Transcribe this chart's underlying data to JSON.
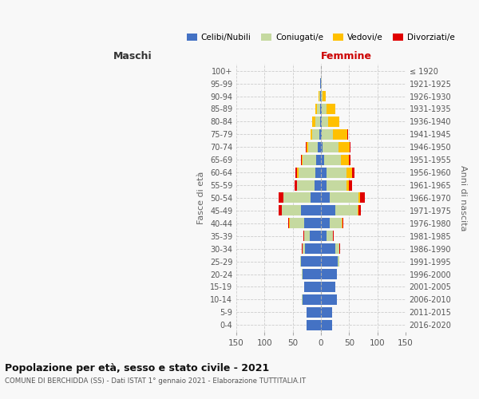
{
  "age_groups": [
    "0-4",
    "5-9",
    "10-14",
    "15-19",
    "20-24",
    "25-29",
    "30-34",
    "35-39",
    "40-44",
    "45-49",
    "50-54",
    "55-59",
    "60-64",
    "65-69",
    "70-74",
    "75-79",
    "80-84",
    "85-89",
    "90-94",
    "95-99",
    "100+"
  ],
  "birth_years": [
    "2016-2020",
    "2011-2015",
    "2006-2010",
    "2001-2005",
    "1996-2000",
    "1991-1995",
    "1986-1990",
    "1981-1985",
    "1976-1980",
    "1971-1975",
    "1966-1970",
    "1961-1965",
    "1956-1960",
    "1951-1955",
    "1946-1950",
    "1941-1945",
    "1936-1940",
    "1931-1935",
    "1926-1930",
    "1921-1925",
    "≤ 1920"
  ],
  "maschi": {
    "celibi": [
      25,
      25,
      33,
      30,
      33,
      35,
      28,
      20,
      30,
      35,
      18,
      12,
      10,
      8,
      5,
      3,
      2,
      2,
      1,
      1,
      0
    ],
    "coniugati": [
      0,
      0,
      1,
      0,
      1,
      2,
      5,
      10,
      25,
      35,
      48,
      30,
      30,
      25,
      18,
      12,
      8,
      5,
      2,
      1,
      0
    ],
    "vedovi": [
      0,
      0,
      0,
      0,
      0,
      0,
      0,
      0,
      1,
      0,
      1,
      1,
      2,
      1,
      2,
      3,
      5,
      3,
      1,
      0,
      0
    ],
    "divorziati": [
      0,
      0,
      0,
      0,
      0,
      0,
      1,
      1,
      2,
      5,
      8,
      4,
      3,
      1,
      2,
      1,
      0,
      0,
      0,
      0,
      0
    ]
  },
  "femmine": {
    "nubili": [
      20,
      20,
      28,
      25,
      28,
      30,
      25,
      10,
      15,
      25,
      15,
      10,
      10,
      5,
      3,
      2,
      1,
      2,
      0,
      0,
      0
    ],
    "coniugate": [
      0,
      0,
      1,
      0,
      1,
      3,
      8,
      12,
      22,
      40,
      52,
      35,
      35,
      30,
      28,
      20,
      12,
      8,
      3,
      1,
      0
    ],
    "vedove": [
      0,
      0,
      0,
      0,
      0,
      0,
      0,
      0,
      1,
      2,
      3,
      5,
      10,
      15,
      20,
      25,
      20,
      15,
      5,
      1,
      0
    ],
    "divorziate": [
      0,
      0,
      0,
      0,
      0,
      0,
      1,
      1,
      2,
      4,
      8,
      5,
      5,
      2,
      2,
      1,
      0,
      0,
      0,
      0,
      0
    ]
  },
  "colors": {
    "celibi": "#4472c4",
    "coniugati": "#c5d9a0",
    "vedovi": "#ffc000",
    "divorziati": "#e00000"
  },
  "legend_labels": [
    "Celibi/Nubili",
    "Coniugati/e",
    "Vedovi/e",
    "Divorziati/e"
  ],
  "title": "Popolazione per età, sesso e stato civile - 2021",
  "subtitle": "COMUNE DI BERCHIDDA (SS) - Dati ISTAT 1° gennaio 2021 - Elaborazione TUTTITALIA.IT",
  "xlabel_left": "Maschi",
  "xlabel_right": "Femmine",
  "ylabel_left": "Fasce di età",
  "ylabel_right": "Anni di nascita",
  "xlim": 150,
  "background_color": "#f8f8f8"
}
